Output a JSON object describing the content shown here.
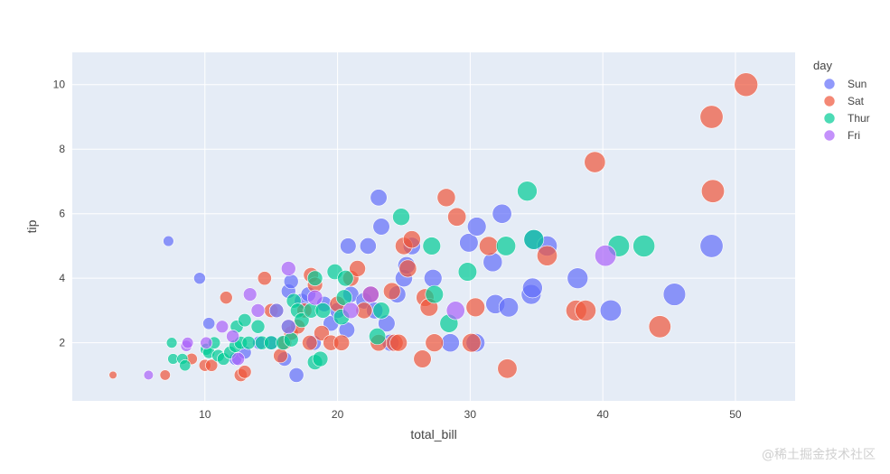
{
  "watermark": "@稀土掘金技术社区",
  "chart_data": {
    "type": "scatter",
    "xlabel": "total_bill",
    "ylabel": "tip",
    "xlim": [
      0,
      54.5
    ],
    "ylim": [
      0.2,
      11
    ],
    "xticks": [
      10,
      20,
      30,
      40,
      50
    ],
    "yticks": [
      2,
      4,
      6,
      8,
      10
    ],
    "grid": true,
    "background": "#e5ecf6",
    "legend": {
      "title": "day",
      "placement": "right"
    },
    "size_encoding": "total_bill",
    "series": [
      {
        "name": "Sun",
        "color": "#636efa",
        "points": [
          [
            7.25,
            5.15
          ],
          [
            9.6,
            4.0
          ],
          [
            10.3,
            2.6
          ],
          [
            12.3,
            1.5
          ],
          [
            13.0,
            1.7
          ],
          [
            14.1,
            2.0
          ],
          [
            15.0,
            2.0
          ],
          [
            16.0,
            1.5
          ],
          [
            16.3,
            3.6
          ],
          [
            16.5,
            3.9
          ],
          [
            16.9,
            1.0
          ],
          [
            17.3,
            3.3
          ],
          [
            17.8,
            3.5
          ],
          [
            18.2,
            2.0
          ],
          [
            19.0,
            3.2
          ],
          [
            19.5,
            2.6
          ],
          [
            20.0,
            3.0
          ],
          [
            20.7,
            2.4
          ],
          [
            20.8,
            5.0
          ],
          [
            21.0,
            3.5
          ],
          [
            22.0,
            3.3
          ],
          [
            22.3,
            5.0
          ],
          [
            22.8,
            3.0
          ],
          [
            23.1,
            6.5
          ],
          [
            23.3,
            5.6
          ],
          [
            23.7,
            2.6
          ],
          [
            24.0,
            2.0
          ],
          [
            24.5,
            3.5
          ],
          [
            25.0,
            4.0
          ],
          [
            25.2,
            4.4
          ],
          [
            25.6,
            5.0
          ],
          [
            27.2,
            4.0
          ],
          [
            28.5,
            2.0
          ],
          [
            29.9,
            5.1
          ],
          [
            30.4,
            2.0
          ],
          [
            30.5,
            5.6
          ],
          [
            31.7,
            4.5
          ],
          [
            31.9,
            3.2
          ],
          [
            32.4,
            6.0
          ],
          [
            32.9,
            3.1
          ],
          [
            34.6,
            3.5
          ],
          [
            34.7,
            3.7
          ],
          [
            34.8,
            5.2
          ],
          [
            35.8,
            5.0
          ],
          [
            38.1,
            4.0
          ],
          [
            40.6,
            3.0
          ],
          [
            45.4,
            3.5
          ],
          [
            48.2,
            5.0
          ]
        ]
      },
      {
        "name": "Sat",
        "color": "#ef553b",
        "points": [
          [
            3.07,
            1.0
          ],
          [
            7.0,
            1.0
          ],
          [
            9.0,
            1.5
          ],
          [
            10.0,
            1.3
          ],
          [
            10.5,
            1.3
          ],
          [
            11.6,
            3.4
          ],
          [
            12.7,
            1.0
          ],
          [
            13.0,
            1.1
          ],
          [
            14.5,
            4.0
          ],
          [
            15.0,
            3.0
          ],
          [
            15.7,
            1.6
          ],
          [
            16.0,
            2.0
          ],
          [
            16.5,
            2.3
          ],
          [
            17.0,
            2.5
          ],
          [
            17.5,
            3.0
          ],
          [
            17.9,
            2.0
          ],
          [
            18.0,
            4.1
          ],
          [
            18.3,
            3.8
          ],
          [
            18.8,
            2.3
          ],
          [
            19.5,
            2.0
          ],
          [
            20.0,
            3.2
          ],
          [
            20.3,
            2.0
          ],
          [
            21.0,
            4.0
          ],
          [
            21.5,
            4.3
          ],
          [
            22.0,
            3.0
          ],
          [
            22.5,
            3.5
          ],
          [
            23.1,
            2.0
          ],
          [
            24.1,
            3.6
          ],
          [
            24.3,
            2.0
          ],
          [
            24.6,
            2.0
          ],
          [
            25.0,
            5.0
          ],
          [
            25.3,
            4.3
          ],
          [
            25.6,
            5.2
          ],
          [
            26.4,
            1.5
          ],
          [
            26.6,
            3.4
          ],
          [
            26.9,
            3.1
          ],
          [
            27.3,
            2.0
          ],
          [
            28.2,
            6.5
          ],
          [
            29.0,
            5.9
          ],
          [
            30.1,
            2.0
          ],
          [
            30.4,
            3.1
          ],
          [
            31.4,
            5.0
          ],
          [
            32.8,
            1.2
          ],
          [
            35.8,
            4.7
          ],
          [
            38.0,
            3.0
          ],
          [
            38.7,
            3.0
          ],
          [
            39.4,
            7.6
          ],
          [
            44.3,
            2.5
          ],
          [
            48.2,
            9.0
          ],
          [
            48.3,
            6.7
          ],
          [
            50.8,
            10.0
          ]
        ]
      },
      {
        "name": "Thur",
        "color": "#00cc96",
        "points": [
          [
            7.5,
            2.0
          ],
          [
            7.6,
            1.5
          ],
          [
            8.3,
            1.5
          ],
          [
            8.5,
            1.3
          ],
          [
            10.1,
            1.8
          ],
          [
            10.3,
            1.7
          ],
          [
            10.7,
            2.0
          ],
          [
            11.0,
            1.6
          ],
          [
            11.4,
            1.5
          ],
          [
            11.9,
            1.7
          ],
          [
            12.3,
            1.9
          ],
          [
            12.4,
            2.5
          ],
          [
            12.7,
            2.0
          ],
          [
            13.0,
            2.7
          ],
          [
            13.3,
            2.0
          ],
          [
            14.0,
            2.5
          ],
          [
            14.3,
            2.0
          ],
          [
            15.0,
            2.0
          ],
          [
            15.4,
            3.0
          ],
          [
            15.9,
            2.0
          ],
          [
            16.3,
            2.5
          ],
          [
            16.5,
            2.1
          ],
          [
            16.7,
            3.3
          ],
          [
            17.0,
            3.0
          ],
          [
            17.3,
            2.7
          ],
          [
            18.0,
            3.0
          ],
          [
            18.3,
            4.0
          ],
          [
            18.3,
            1.4
          ],
          [
            18.9,
            3.0
          ],
          [
            18.7,
            1.5
          ],
          [
            19.8,
            4.2
          ],
          [
            20.3,
            2.8
          ],
          [
            20.5,
            3.4
          ],
          [
            20.6,
            4.0
          ],
          [
            23.0,
            2.2
          ],
          [
            23.3,
            3.0
          ],
          [
            24.8,
            5.9
          ],
          [
            27.1,
            5.0
          ],
          [
            27.3,
            3.5
          ],
          [
            28.4,
            2.6
          ],
          [
            29.8,
            4.2
          ],
          [
            32.7,
            5.0
          ],
          [
            34.3,
            6.7
          ],
          [
            34.8,
            5.2
          ],
          [
            41.2,
            5.0
          ],
          [
            43.1,
            5.0
          ]
        ]
      },
      {
        "name": "Fri",
        "color": "#ab63fa",
        "points": [
          [
            5.75,
            1.0
          ],
          [
            8.6,
            1.9
          ],
          [
            8.7,
            2.0
          ],
          [
            10.1,
            2.0
          ],
          [
            11.3,
            2.5
          ],
          [
            12.1,
            2.2
          ],
          [
            12.5,
            1.5
          ],
          [
            13.4,
            3.5
          ],
          [
            14.0,
            3.0
          ],
          [
            15.4,
            3.0
          ],
          [
            16.3,
            4.3
          ],
          [
            16.3,
            2.5
          ],
          [
            18.3,
            3.4
          ],
          [
            21.0,
            3.0
          ],
          [
            22.5,
            3.5
          ],
          [
            28.9,
            3.0
          ],
          [
            40.2,
            4.7
          ]
        ]
      }
    ]
  }
}
